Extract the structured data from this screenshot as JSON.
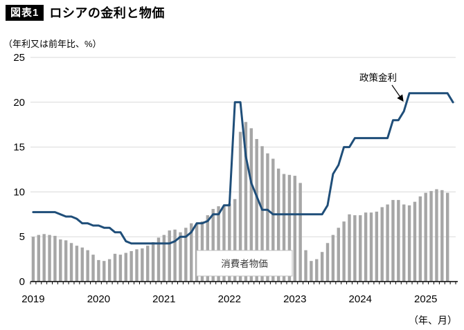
{
  "header": {
    "figure_tag": "図表1",
    "title": "ロシアの金利と物価"
  },
  "unit_label": "（年利又は前年比、%）",
  "x_unit_label": "（年、月）",
  "chart_data": {
    "type": "combo",
    "title": "ロシアの金利と物価",
    "ylabel": "（年利又は前年比、%）",
    "xlabel": "（年、月）",
    "ylim": [
      0,
      25
    ],
    "y_ticks": [
      0,
      5,
      10,
      15,
      20,
      25
    ],
    "grid": true,
    "x_start": "2019-01",
    "x_interval": "monthly",
    "x_year_labels": [
      "2019",
      "2020",
      "2021",
      "2022",
      "2023",
      "2024",
      "2025"
    ],
    "series": [
      {
        "name": "政策金利",
        "type": "line",
        "color": "#1f4e79",
        "values": [
          7.75,
          7.75,
          7.75,
          7.75,
          7.75,
          7.5,
          7.25,
          7.25,
          7.0,
          6.5,
          6.5,
          6.25,
          6.25,
          6.0,
          6.0,
          5.5,
          5.5,
          4.5,
          4.25,
          4.25,
          4.25,
          4.25,
          4.25,
          4.25,
          4.25,
          4.25,
          4.5,
          5.0,
          5.0,
          5.5,
          6.5,
          6.5,
          6.75,
          7.5,
          7.5,
          8.5,
          8.5,
          20,
          20,
          14,
          11,
          9.5,
          8.0,
          8.0,
          7.5,
          7.5,
          7.5,
          7.5,
          7.5,
          7.5,
          7.5,
          7.5,
          7.5,
          7.5,
          8.5,
          12,
          13,
          15,
          15,
          16,
          16,
          16,
          16,
          16,
          16,
          16,
          18,
          18,
          19,
          21,
          21,
          21,
          21,
          21,
          21,
          21,
          21,
          20
        ]
      },
      {
        "name": "消費者物価",
        "type": "bar",
        "color": "#a6a6a6",
        "values": [
          5.0,
          5.2,
          5.3,
          5.2,
          5.1,
          4.7,
          4.6,
          4.3,
          4.0,
          3.8,
          3.5,
          3.0,
          2.4,
          2.3,
          2.5,
          3.1,
          3.0,
          3.2,
          3.4,
          3.6,
          3.7,
          4.0,
          4.4,
          4.9,
          5.2,
          5.7,
          5.8,
          5.5,
          6.0,
          6.5,
          6.5,
          6.7,
          7.4,
          8.1,
          8.4,
          8.4,
          8.7,
          9.2,
          16.7,
          17.8,
          17.1,
          15.9,
          15.1,
          14.3,
          13.7,
          12.6,
          12.0,
          11.9,
          11.8,
          11.0,
          3.5,
          2.3,
          2.5,
          3.3,
          4.3,
          5.2,
          6.0,
          6.7,
          7.5,
          7.4,
          7.4,
          7.7,
          7.7,
          7.8,
          8.3,
          8.6,
          9.1,
          9.1,
          8.6,
          8.5,
          8.9,
          9.5,
          9.9,
          10.1,
          10.3,
          10.2,
          9.9,
          null
        ]
      }
    ],
    "annotations": {
      "line_label": "政策金利",
      "bar_label": "消費者物価"
    },
    "colors": {
      "grid": "#d9d9d9",
      "axis": "#000000",
      "bar_label_border": "#bfbfbf"
    }
  }
}
